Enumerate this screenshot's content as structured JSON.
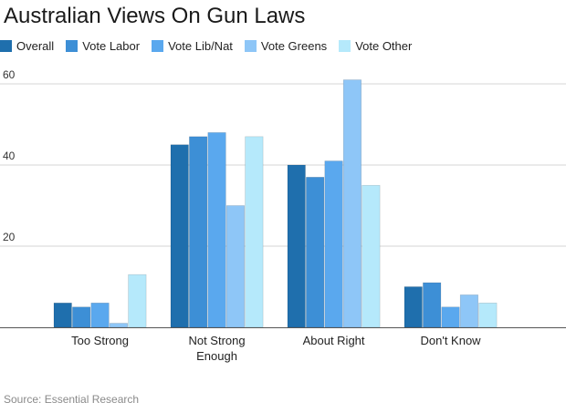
{
  "chart_data": {
    "type": "bar",
    "title": "Australian Views On Gun Laws",
    "categories": [
      "Too Strong",
      "Not Strong Enough",
      "About Right",
      "Don't Know"
    ],
    "category_lines": [
      [
        "Too Strong"
      ],
      [
        "Not Strong",
        "Enough"
      ],
      [
        "About Right"
      ],
      [
        "Don't Know"
      ]
    ],
    "series": [
      {
        "name": "Overall",
        "color": "#1f6fad",
        "values": [
          6,
          45,
          40,
          10
        ]
      },
      {
        "name": "Vote Labor",
        "color": "#3d8fd6",
        "values": [
          5,
          47,
          37,
          11
        ]
      },
      {
        "name": "Vote Lib/Nat",
        "color": "#5aa8ee",
        "values": [
          6,
          48,
          41,
          5
        ]
      },
      {
        "name": "Vote Greens",
        "color": "#8ec6f7",
        "values": [
          1,
          30,
          61,
          8
        ]
      },
      {
        "name": "Vote Other",
        "color": "#b5e9fb",
        "values": [
          13,
          47,
          35,
          6
        ]
      }
    ],
    "ylim": [
      0,
      60
    ],
    "yticks": [
      20,
      40,
      60
    ],
    "xlabel": "",
    "ylabel": "",
    "grid": true,
    "legend_position": "top-left",
    "source": "Source: Essential Research"
  }
}
